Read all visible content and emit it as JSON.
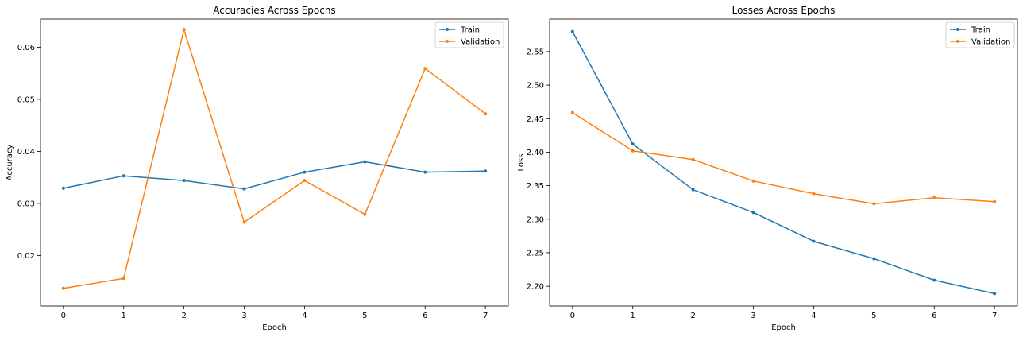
{
  "figure": {
    "background": "#ffffff"
  },
  "colors": {
    "train": "#1f77b4",
    "validation": "#ff7f0e",
    "axes": "#000000"
  },
  "chart_data": [
    {
      "type": "line",
      "title": "Accuracies Across Epochs",
      "xlabel": "Epoch",
      "ylabel": "Accuracy",
      "x": [
        0,
        1,
        2,
        3,
        4,
        5,
        6,
        7
      ],
      "xticks": [
        "0",
        "1",
        "2",
        "3",
        "4",
        "5",
        "6",
        "7"
      ],
      "yticks": [
        "0.02",
        "0.03",
        "0.04",
        "0.05",
        "0.06"
      ],
      "xlim": [
        -0.38,
        7.38
      ],
      "ylim": [
        0.0103,
        0.0654
      ],
      "grid": false,
      "legend": "top-right",
      "series": [
        {
          "name": "Train",
          "color": "#1f77b4",
          "values": [
            0.0329,
            0.0353,
            0.0344,
            0.0328,
            0.036,
            0.038,
            0.036,
            0.0362
          ]
        },
        {
          "name": "Validation",
          "color": "#ff7f0e",
          "values": [
            0.0137,
            0.0156,
            0.0634,
            0.0264,
            0.0344,
            0.0279,
            0.0559,
            0.0472
          ]
        }
      ]
    },
    {
      "type": "line",
      "title": "Losses Across Epochs",
      "xlabel": "Epoch",
      "ylabel": "Loss",
      "x": [
        0,
        1,
        2,
        3,
        4,
        5,
        6,
        7
      ],
      "xticks": [
        "0",
        "1",
        "2",
        "3",
        "4",
        "5",
        "6",
        "7"
      ],
      "yticks": [
        "2.20",
        "2.25",
        "2.30",
        "2.35",
        "2.40",
        "2.45",
        "2.50",
        "2.55"
      ],
      "xlim": [
        -0.38,
        7.38
      ],
      "ylim": [
        2.1705,
        2.5985
      ],
      "grid": false,
      "legend": "top-right",
      "series": [
        {
          "name": "Train",
          "color": "#1f77b4",
          "values": [
            2.58,
            2.412,
            2.344,
            2.31,
            2.267,
            2.241,
            2.209,
            2.189
          ]
        },
        {
          "name": "Validation",
          "color": "#ff7f0e",
          "values": [
            2.459,
            2.402,
            2.389,
            2.357,
            2.338,
            2.323,
            2.332,
            2.326
          ]
        }
      ]
    }
  ]
}
